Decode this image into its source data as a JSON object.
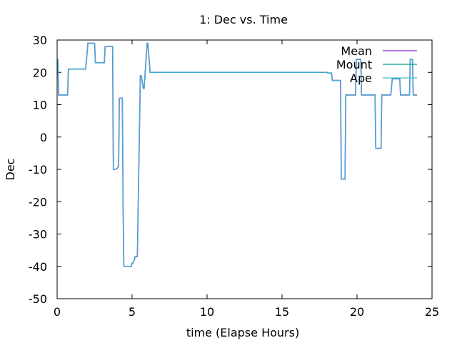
{
  "chart_data": {
    "type": "line",
    "title": "1: Dec vs. Time",
    "xlabel": "time (Elapse Hours)",
    "ylabel": "Dec",
    "xlim": [
      0,
      25
    ],
    "ylim": [
      -50,
      30
    ],
    "xticks": [
      0,
      5,
      10,
      15,
      20,
      25
    ],
    "yticks": [
      -50,
      -40,
      -30,
      -20,
      -10,
      0,
      10,
      20,
      30
    ],
    "legend_position": "top-right",
    "series": [
      {
        "name": "Mean",
        "color": "#7b2fd6",
        "x": [
          0,
          0.05,
          0.1,
          0.35,
          0.4,
          0.7,
          0.75,
          1.8,
          1.9,
          2.0,
          2.05,
          2.5,
          2.55,
          3.15,
          3.2,
          3.5,
          3.55,
          3.7,
          3.75,
          3.9,
          3.95,
          4.1,
          4.15,
          4.35,
          4.4,
          4.45,
          4.5,
          4.55,
          4.95,
          5.0,
          5.05,
          5.15,
          5.2,
          5.35,
          5.4,
          5.55,
          5.6,
          5.75,
          5.8,
          6.0,
          6.05,
          6.2,
          16.0,
          18.0,
          18.05,
          18.3,
          18.35,
          18.9,
          18.95,
          19.2,
          19.25,
          19.45,
          19.5,
          19.9,
          19.95,
          20.25,
          20.3,
          20.45,
          20.5,
          21.2,
          21.25,
          21.6,
          21.65,
          22.2,
          22.25,
          22.35,
          22.4,
          22.55,
          22.6,
          22.85,
          22.9,
          23.1,
          23.15,
          23.5,
          23.55,
          23.7,
          23.75,
          23.85,
          23.9,
          24.0
        ],
        "y": [
          24,
          24,
          13,
          13,
          13,
          13,
          21,
          21,
          21,
          26,
          29,
          29,
          23,
          23,
          28,
          28,
          28,
          28,
          -10,
          -10,
          -10,
          -9,
          12,
          12,
          -22,
          -40,
          -40,
          -40,
          -40,
          -39,
          -39,
          -38,
          -37,
          -37,
          -23,
          19,
          19,
          15,
          15,
          29,
          29,
          20,
          20,
          20,
          19.8,
          19.8,
          17.5,
          17.5,
          -13,
          -13,
          13,
          13,
          13,
          13,
          24,
          24,
          13,
          13,
          13,
          13,
          -3.5,
          -3.5,
          13,
          13,
          13,
          18,
          18,
          18,
          18,
          18,
          13,
          13,
          13,
          13,
          24,
          24,
          13,
          13,
          13,
          13
        ]
      },
      {
        "name": "Mount",
        "color": "#00a08a",
        "x": [
          0,
          0.05,
          0.1,
          0.35,
          0.4,
          0.7,
          0.75,
          1.8,
          1.9,
          2.0,
          2.05,
          2.5,
          2.55,
          3.15,
          3.2,
          3.5,
          3.55,
          3.7,
          3.75,
          3.9,
          3.95,
          4.1,
          4.15,
          4.35,
          4.4,
          4.45,
          4.5,
          4.55,
          4.95,
          5.0,
          5.05,
          5.15,
          5.2,
          5.35,
          5.4,
          5.55,
          5.6,
          5.75,
          5.8,
          6.0,
          6.05,
          6.2,
          16.0,
          18.0,
          18.05,
          18.3,
          18.35,
          18.9,
          18.95,
          19.2,
          19.25,
          19.45,
          19.5,
          19.9,
          19.95,
          20.25,
          20.3,
          20.45,
          20.5,
          21.2,
          21.25,
          21.6,
          21.65,
          22.2,
          22.25,
          22.35,
          22.4,
          22.55,
          22.6,
          22.85,
          22.9,
          23.1,
          23.15,
          23.5,
          23.55,
          23.7,
          23.75,
          23.85,
          23.9,
          24.0
        ],
        "y": [
          24,
          24,
          13,
          13,
          13,
          13,
          21,
          21,
          21,
          26,
          29,
          29,
          23,
          23,
          28,
          28,
          28,
          28,
          -10,
          -10,
          -10,
          -9,
          12,
          12,
          -22,
          -40,
          -40,
          -40,
          -40,
          -39,
          -39,
          -38,
          -37,
          -37,
          -23,
          19,
          19,
          15,
          15,
          29,
          29,
          20,
          20,
          20,
          19.8,
          19.8,
          17.5,
          17.5,
          -13,
          -13,
          13,
          13,
          13,
          13,
          24,
          24,
          13,
          13,
          13,
          13,
          -3.5,
          -3.5,
          13,
          13,
          13,
          18,
          18,
          18,
          18,
          18,
          13,
          13,
          13,
          13,
          24,
          24,
          13,
          13,
          13,
          13
        ]
      },
      {
        "name": "Ape",
        "color": "#3cbfd2",
        "x": [
          0,
          0.05,
          0.1,
          0.35,
          0.4,
          0.7,
          0.75,
          1.8,
          1.9,
          2.0,
          2.05,
          2.5,
          2.55,
          3.15,
          3.2,
          3.5,
          3.55,
          3.7,
          3.75,
          3.9,
          3.95,
          4.1,
          4.15,
          4.35,
          4.4,
          4.45,
          4.5,
          4.55,
          4.95,
          5.0,
          5.05,
          5.15,
          5.2,
          5.35,
          5.4,
          5.55,
          5.6,
          5.75,
          5.8,
          6.0,
          6.05,
          6.2,
          16.0,
          18.0,
          18.05,
          18.3,
          18.35,
          18.9,
          18.95,
          19.2,
          19.25,
          19.45,
          19.5,
          19.9,
          19.95,
          20.25,
          20.3,
          20.45,
          20.5,
          21.2,
          21.25,
          21.6,
          21.65,
          22.2,
          22.25,
          22.35,
          22.4,
          22.55,
          22.6,
          22.85,
          22.9,
          23.1,
          23.15,
          23.5,
          23.55,
          23.7,
          23.75,
          23.85,
          23.9,
          24.0
        ],
        "y": [
          24,
          24,
          13,
          13,
          13,
          13,
          21,
          21,
          21,
          26,
          29,
          29,
          23,
          23,
          28,
          28,
          28,
          28,
          -10,
          -10,
          -10,
          -9,
          12,
          12,
          -22,
          -40,
          -40,
          -40,
          -40,
          -39,
          -39,
          -38,
          -37,
          -37,
          -23,
          19,
          19,
          15,
          15,
          29,
          29,
          20,
          20,
          20,
          19.8,
          19.8,
          17.5,
          17.5,
          -13,
          -13,
          13,
          13,
          13,
          13,
          24,
          24,
          13,
          13,
          13,
          13,
          -3.5,
          -3.5,
          13,
          13,
          13,
          18,
          18,
          18,
          18,
          18,
          13,
          13,
          13,
          13,
          24,
          24,
          13,
          13,
          13,
          13
        ]
      }
    ]
  }
}
